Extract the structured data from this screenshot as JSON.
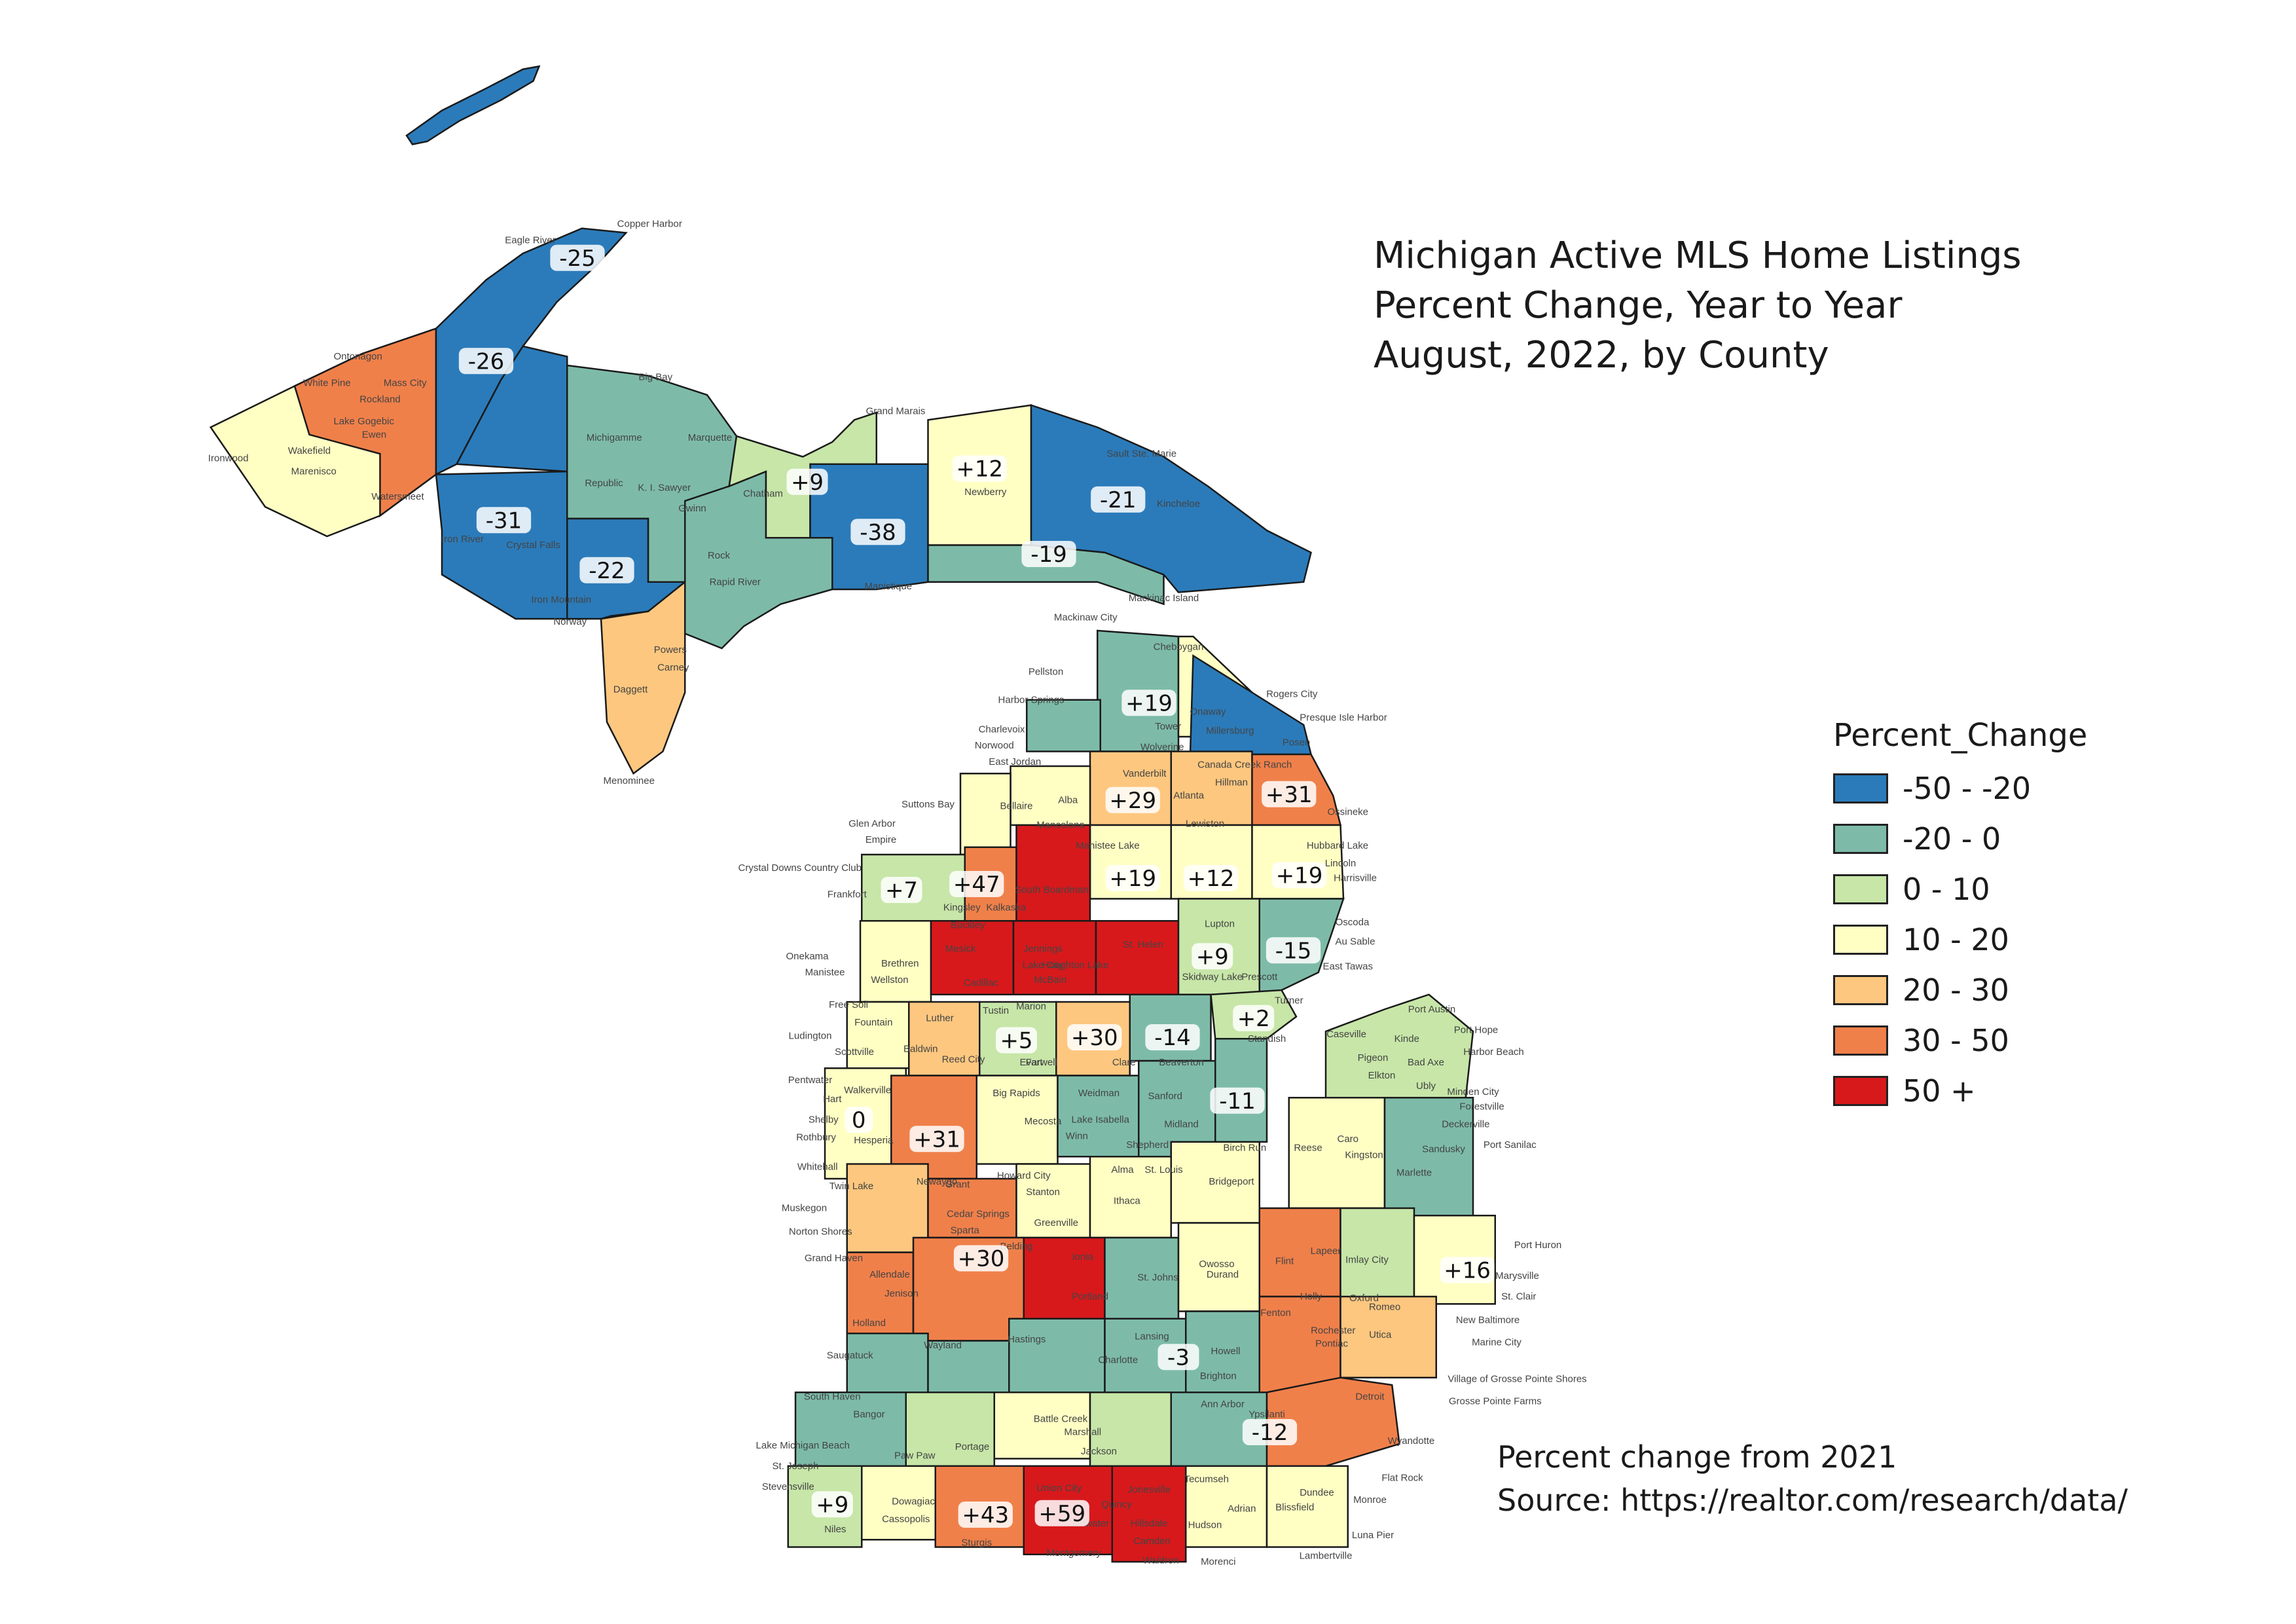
{
  "title": {
    "line1": "Michigan Active MLS Home Listings",
    "line2": "Percent Change, Year to Year",
    "line3": "August, 2022, by County"
  },
  "legend": {
    "title": "Percent_Change",
    "items": [
      {
        "label": "-50 - -20",
        "color": "#2b7bba"
      },
      {
        "label": "-20 - 0",
        "color": "#7dbba8"
      },
      {
        "label": "0 - 10",
        "color": "#c7e6a8"
      },
      {
        "label": "10 - 20",
        "color": "#ffffc4"
      },
      {
        "label": "20 - 30",
        "color": "#fdc77f"
      },
      {
        "label": "30 - 50",
        "color": "#f0804a"
      },
      {
        "label": "50 +",
        "color": "#d7191c"
      }
    ]
  },
  "source": {
    "line1": "Percent change from 2021",
    "line2": "Source: https://realtor.com/research/data/"
  },
  "county_values": [
    "-25",
    "-26",
    "-31",
    "-22",
    "+9",
    "-38",
    "+12",
    "-21",
    "-19",
    "+19",
    "+29",
    "+31",
    "+47",
    "+7",
    "+19",
    "+12",
    "+19",
    "+9",
    "-15",
    "+2",
    "+5",
    "+30",
    "-14",
    "-11",
    "0",
    "+31",
    "+30",
    "-3",
    "+16",
    "-12",
    "+9",
    "+43",
    "+59"
  ],
  "place_names": [
    "Copper Harbor",
    "Eagle River",
    "Ontonagon",
    "White Pine",
    "Mass City",
    "Rockland",
    "Lake Gogebic",
    "Ewen",
    "Ironwood",
    "Wakefield",
    "Marenisco",
    "Watersmeet",
    "Big Bay",
    "Marquette",
    "Michigamme",
    "Republic",
    "K. I. Sawyer",
    "Gwinn",
    "Grand Marais",
    "Chatham",
    "Newberry",
    "Sault Ste. Marie",
    "Kincheloe",
    "Iron River",
    "Crystal Falls",
    "Iron Mountain",
    "Norway",
    "Powers",
    "Carney",
    "Daggett",
    "Menominee",
    "Rock",
    "Rapid River",
    "Manistique",
    "Mackinac Island",
    "Mackinaw City",
    "Cheboygan",
    "Rogers City",
    "Presque Isle Harbor",
    "Onaway",
    "Millersburg",
    "Posen",
    "Pellston",
    "Harbor Springs",
    "Tower",
    "Wolverine",
    "Vanderbilt",
    "Canada Creek Ranch",
    "Hillman",
    "Atlanta",
    "Lewiston",
    "Ossineke",
    "Charlevoix",
    "Norwood",
    "East Jordan",
    "Alba",
    "Mancelona",
    "Bellaire",
    "Suttons Bay",
    "Glen Arbor",
    "Empire",
    "Crystal Downs Country Club",
    "Frankfort",
    "Kalkaska",
    "South Boardman",
    "Manistee Lake",
    "Hubbard Lake",
    "Lincoln",
    "Harrisville",
    "Kingsley",
    "Buckley",
    "Mesick",
    "Cadillac",
    "Jennings",
    "Lake City",
    "McBain",
    "Houghton Lake",
    "St. Helen",
    "Lupton",
    "Skidway Lake",
    "Prescott",
    "Oscoda",
    "Au Sable",
    "East Tawas",
    "Turner",
    "Standish",
    "Onekama",
    "Manistee",
    "Brethren",
    "Wellston",
    "Free Soil",
    "Fountain",
    "Ludington",
    "Scottville",
    "Luther",
    "Baldwin",
    "Reed City",
    "Tustin",
    "Marion",
    "Evart",
    "Farwell",
    "Clare",
    "Beaverton",
    "Pentwater",
    "Hart",
    "Walkerville",
    "Shelby",
    "Hesperia",
    "Rothbury",
    "Big Rapids",
    "Mecosta",
    "Weidman",
    "Lake Isabella",
    "Sanford",
    "Midland",
    "Shepherd",
    "Winn",
    "Port Austin",
    "Port Hope",
    "Harbor Beach",
    "Caseville",
    "Kinde",
    "Pigeon",
    "Bad Axe",
    "Elkton",
    "Ubly",
    "Minden City",
    "Forestville",
    "Deckerville",
    "Whitehall",
    "Twin Lake",
    "Newaygo",
    "Grant",
    "Howard City",
    "Stanton",
    "Alma",
    "St. Louis",
    "Ithaca",
    "Bridgeport",
    "Birch Run",
    "Reese",
    "Caro",
    "Kingston",
    "Marlette",
    "Sandusky",
    "Port Sanilac",
    "Muskegon",
    "Norton Shores",
    "Grand Haven",
    "Allendale",
    "Jenison",
    "Holland",
    "Cedar Springs",
    "Sparta",
    "Greenville",
    "Belding",
    "Ionia",
    "Portland",
    "St. Johns",
    "Owosso",
    "Durand",
    "Flint",
    "Lapeer",
    "Imlay City",
    "Port Huron",
    "Marysville",
    "St. Clair",
    "Saugatuck",
    "Wayland",
    "Hastings",
    "Charlotte",
    "Lansing",
    "Howell",
    "Brighton",
    "Fenton",
    "Holly",
    "Oxford",
    "Rochester",
    "Pontiac",
    "Utica",
    "Romeo",
    "New Baltimore",
    "Marine City",
    "South Haven",
    "Bangor",
    "Paw Paw",
    "Portage",
    "Battle Creek",
    "Marshall",
    "Jackson",
    "Ann Arbor",
    "Ypsilanti",
    "Detroit",
    "Wyandotte",
    "Flat Rock",
    "Monroe",
    "Luna Pier",
    "Lake Michigan Beach",
    "St. Joseph",
    "Stevensville",
    "Niles",
    "Cassopolis",
    "Dowagiac",
    "Sturgis",
    "Union City",
    "Quincy",
    "Coldwater",
    "Hillsdale",
    "Jonesville",
    "Camden",
    "Adrian",
    "Tecumseh",
    "Hudson",
    "Morenci",
    "Montgomery",
    "Waldron",
    "Lambertville",
    "Blissfield",
    "Dundee",
    "Village of Grosse Pointe Shores",
    "Grosse Pointe Farms"
  ]
}
